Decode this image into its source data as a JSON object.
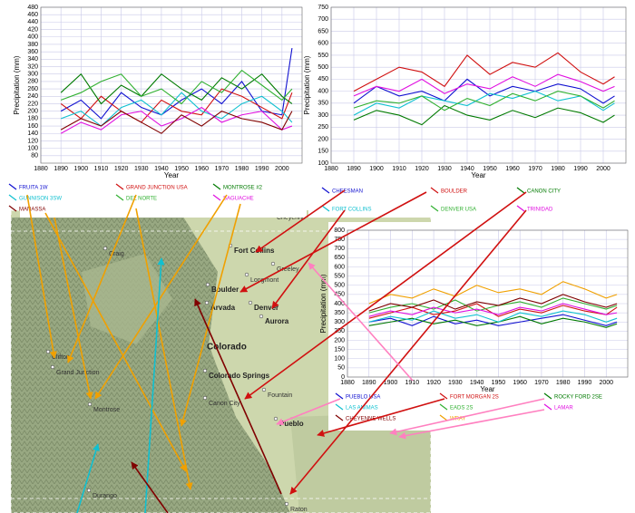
{
  "chart_data": [
    {
      "type": "line",
      "y_label": "Precipitation (mm)",
      "x_label": "Year",
      "xlim": [
        1880,
        2010
      ],
      "xticks": [
        1880,
        1890,
        1900,
        1910,
        1920,
        1930,
        1940,
        1950,
        1960,
        1970,
        1980,
        1990,
        2000
      ],
      "ylim": [
        60,
        480
      ],
      "yticks": [
        80,
        100,
        120,
        140,
        160,
        180,
        200,
        220,
        240,
        260,
        280,
        300,
        320,
        340,
        360,
        380,
        400,
        420,
        440,
        460,
        480
      ],
      "grid": true,
      "x": [
        1890,
        1900,
        1910,
        1920,
        1930,
        1940,
        1950,
        1960,
        1970,
        1980,
        1990,
        2000,
        2005
      ],
      "series": [
        {
          "name": "FRUITA 1W",
          "color": "#1010d0",
          "values": [
            200,
            230,
            180,
            250,
            210,
            190,
            230,
            260,
            220,
            280,
            200,
            190,
            370
          ]
        },
        {
          "name": "GRAND JUNCTION  USA",
          "color": "#d01010",
          "values": [
            220,
            180,
            240,
            200,
            170,
            230,
            200,
            190,
            260,
            240,
            210,
            180,
            250
          ]
        },
        {
          "name": "MONTROSE #2",
          "color": "#007a00",
          "values": [
            250,
            300,
            220,
            270,
            240,
            300,
            260,
            230,
            290,
            260,
            300,
            240,
            220
          ]
        },
        {
          "name": "GUNNISON 3SW",
          "color": "#10c0d0",
          "values": [
            180,
            200,
            160,
            210,
            230,
            190,
            250,
            200,
            180,
            220,
            240,
            200,
            170
          ]
        },
        {
          "name": "DEL NORTE",
          "color": "#30b030",
          "values": [
            230,
            250,
            280,
            300,
            240,
            260,
            220,
            280,
            250,
            310,
            270,
            230,
            260
          ]
        },
        {
          "name": "SAGUACHE",
          "color": "#e010e0",
          "values": [
            140,
            170,
            150,
            190,
            200,
            160,
            180,
            210,
            170,
            190,
            200,
            150,
            160
          ]
        },
        {
          "name": "MANASSA",
          "color": "#800000",
          "values": [
            150,
            180,
            160,
            200,
            170,
            140,
            190,
            160,
            200,
            180,
            170,
            150,
            200
          ]
        }
      ]
    },
    {
      "type": "line",
      "y_label": "Precipitation (mm)",
      "x_label": "Year",
      "xlim": [
        1880,
        2010
      ],
      "xticks": [
        1880,
        1890,
        1900,
        1910,
        1920,
        1930,
        1940,
        1950,
        1960,
        1970,
        1980,
        1990,
        2000
      ],
      "ylim": [
        100,
        750
      ],
      "yticks": [
        100,
        150,
        200,
        250,
        300,
        350,
        400,
        450,
        500,
        550,
        600,
        650,
        700,
        750
      ],
      "grid": true,
      "x": [
        1890,
        1900,
        1910,
        1920,
        1930,
        1940,
        1950,
        1960,
        1970,
        1980,
        1990,
        2000,
        2005
      ],
      "series": [
        {
          "name": "CHEESMAN",
          "color": "#1010d0",
          "values": [
            350,
            420,
            380,
            400,
            360,
            450,
            380,
            420,
            400,
            430,
            410,
            350,
            380
          ]
        },
        {
          "name": "BOULDER",
          "color": "#d01010",
          "values": [
            400,
            450,
            500,
            480,
            420,
            550,
            470,
            520,
            500,
            560,
            480,
            430,
            460
          ]
        },
        {
          "name": "CANON CITY",
          "color": "#007a00",
          "values": [
            280,
            320,
            300,
            260,
            340,
            300,
            280,
            320,
            290,
            330,
            310,
            270,
            300
          ]
        },
        {
          "name": "FORT COLLINS",
          "color": "#10c0d0",
          "values": [
            300,
            350,
            330,
            380,
            360,
            340,
            390,
            370,
            400,
            360,
            380,
            320,
            350
          ]
        },
        {
          "name": "DENVER   USA",
          "color": "#30b030",
          "values": [
            330,
            360,
            350,
            380,
            320,
            370,
            340,
            390,
            360,
            400,
            380,
            330,
            360
          ]
        },
        {
          "name": "TRINIDAD",
          "color": "#e010e0",
          "values": [
            380,
            420,
            400,
            450,
            390,
            430,
            410,
            460,
            420,
            470,
            440,
            400,
            420
          ]
        }
      ]
    },
    {
      "type": "line",
      "y_label": "Precipitation (mm)",
      "x_label": "Year",
      "xlim": [
        1880,
        2010
      ],
      "xticks": [
        1880,
        1890,
        1900,
        1910,
        1920,
        1930,
        1940,
        1950,
        1960,
        1970,
        1980,
        1990,
        2000
      ],
      "ylim": [
        0,
        800
      ],
      "yticks": [
        0,
        50,
        100,
        150,
        200,
        250,
        300,
        350,
        400,
        450,
        500,
        550,
        600,
        650,
        700,
        750,
        800
      ],
      "grid": true,
      "x": [
        1890,
        1900,
        1910,
        1920,
        1930,
        1940,
        1950,
        1960,
        1970,
        1980,
        1990,
        2000,
        2005
      ],
      "series": [
        {
          "name": "PUEBLO   USA",
          "color": "#1010d0",
          "values": [
            300,
            320,
            280,
            330,
            290,
            310,
            280,
            300,
            320,
            340,
            310,
            280,
            300
          ]
        },
        {
          "name": "FORT MORGAN 2S",
          "color": "#d01010",
          "values": [
            320,
            350,
            380,
            340,
            360,
            400,
            330,
            370,
            350,
            390,
            360,
            340,
            380
          ]
        },
        {
          "name": "ROCKY FORD 2SE",
          "color": "#007a00",
          "values": [
            280,
            300,
            320,
            290,
            310,
            280,
            300,
            330,
            290,
            320,
            300,
            270,
            290
          ]
        },
        {
          "name": "LAS ANIMAS",
          "color": "#10c0d0",
          "values": [
            300,
            330,
            310,
            360,
            320,
            340,
            300,
            350,
            330,
            360,
            340,
            300,
            320
          ]
        },
        {
          "name": "EADS 2S",
          "color": "#30b030",
          "values": [
            350,
            380,
            400,
            370,
            420,
            360,
            390,
            410,
            380,
            430,
            400,
            370,
            390
          ]
        },
        {
          "name": "LAMAR",
          "color": "#e010e0",
          "values": [
            330,
            360,
            340,
            380,
            350,
            370,
            340,
            380,
            360,
            400,
            370,
            340,
            350
          ]
        },
        {
          "name": "CHEYENNE WELLS",
          "color": "#800000",
          "values": [
            360,
            400,
            380,
            420,
            370,
            410,
            390,
            430,
            400,
            450,
            410,
            380,
            400
          ]
        },
        {
          "name": "WRAY",
          "color": "#f0a000",
          "values": [
            400,
            450,
            430,
            480,
            440,
            500,
            460,
            480,
            450,
            520,
            480,
            430,
            450
          ]
        }
      ]
    }
  ],
  "map": {
    "labels": [
      "Cheyenne",
      "Fort Collins",
      "Greeley",
      "Craig",
      "Longmont",
      "Boulder",
      "Arvada",
      "Denver",
      "Aurora",
      "Colorado",
      "Colorado Springs",
      "Fountain",
      "Clifton",
      "Grand Junction",
      "Montrose",
      "Canon City",
      "Pueblo",
      "Durango",
      "Raton"
    ]
  }
}
